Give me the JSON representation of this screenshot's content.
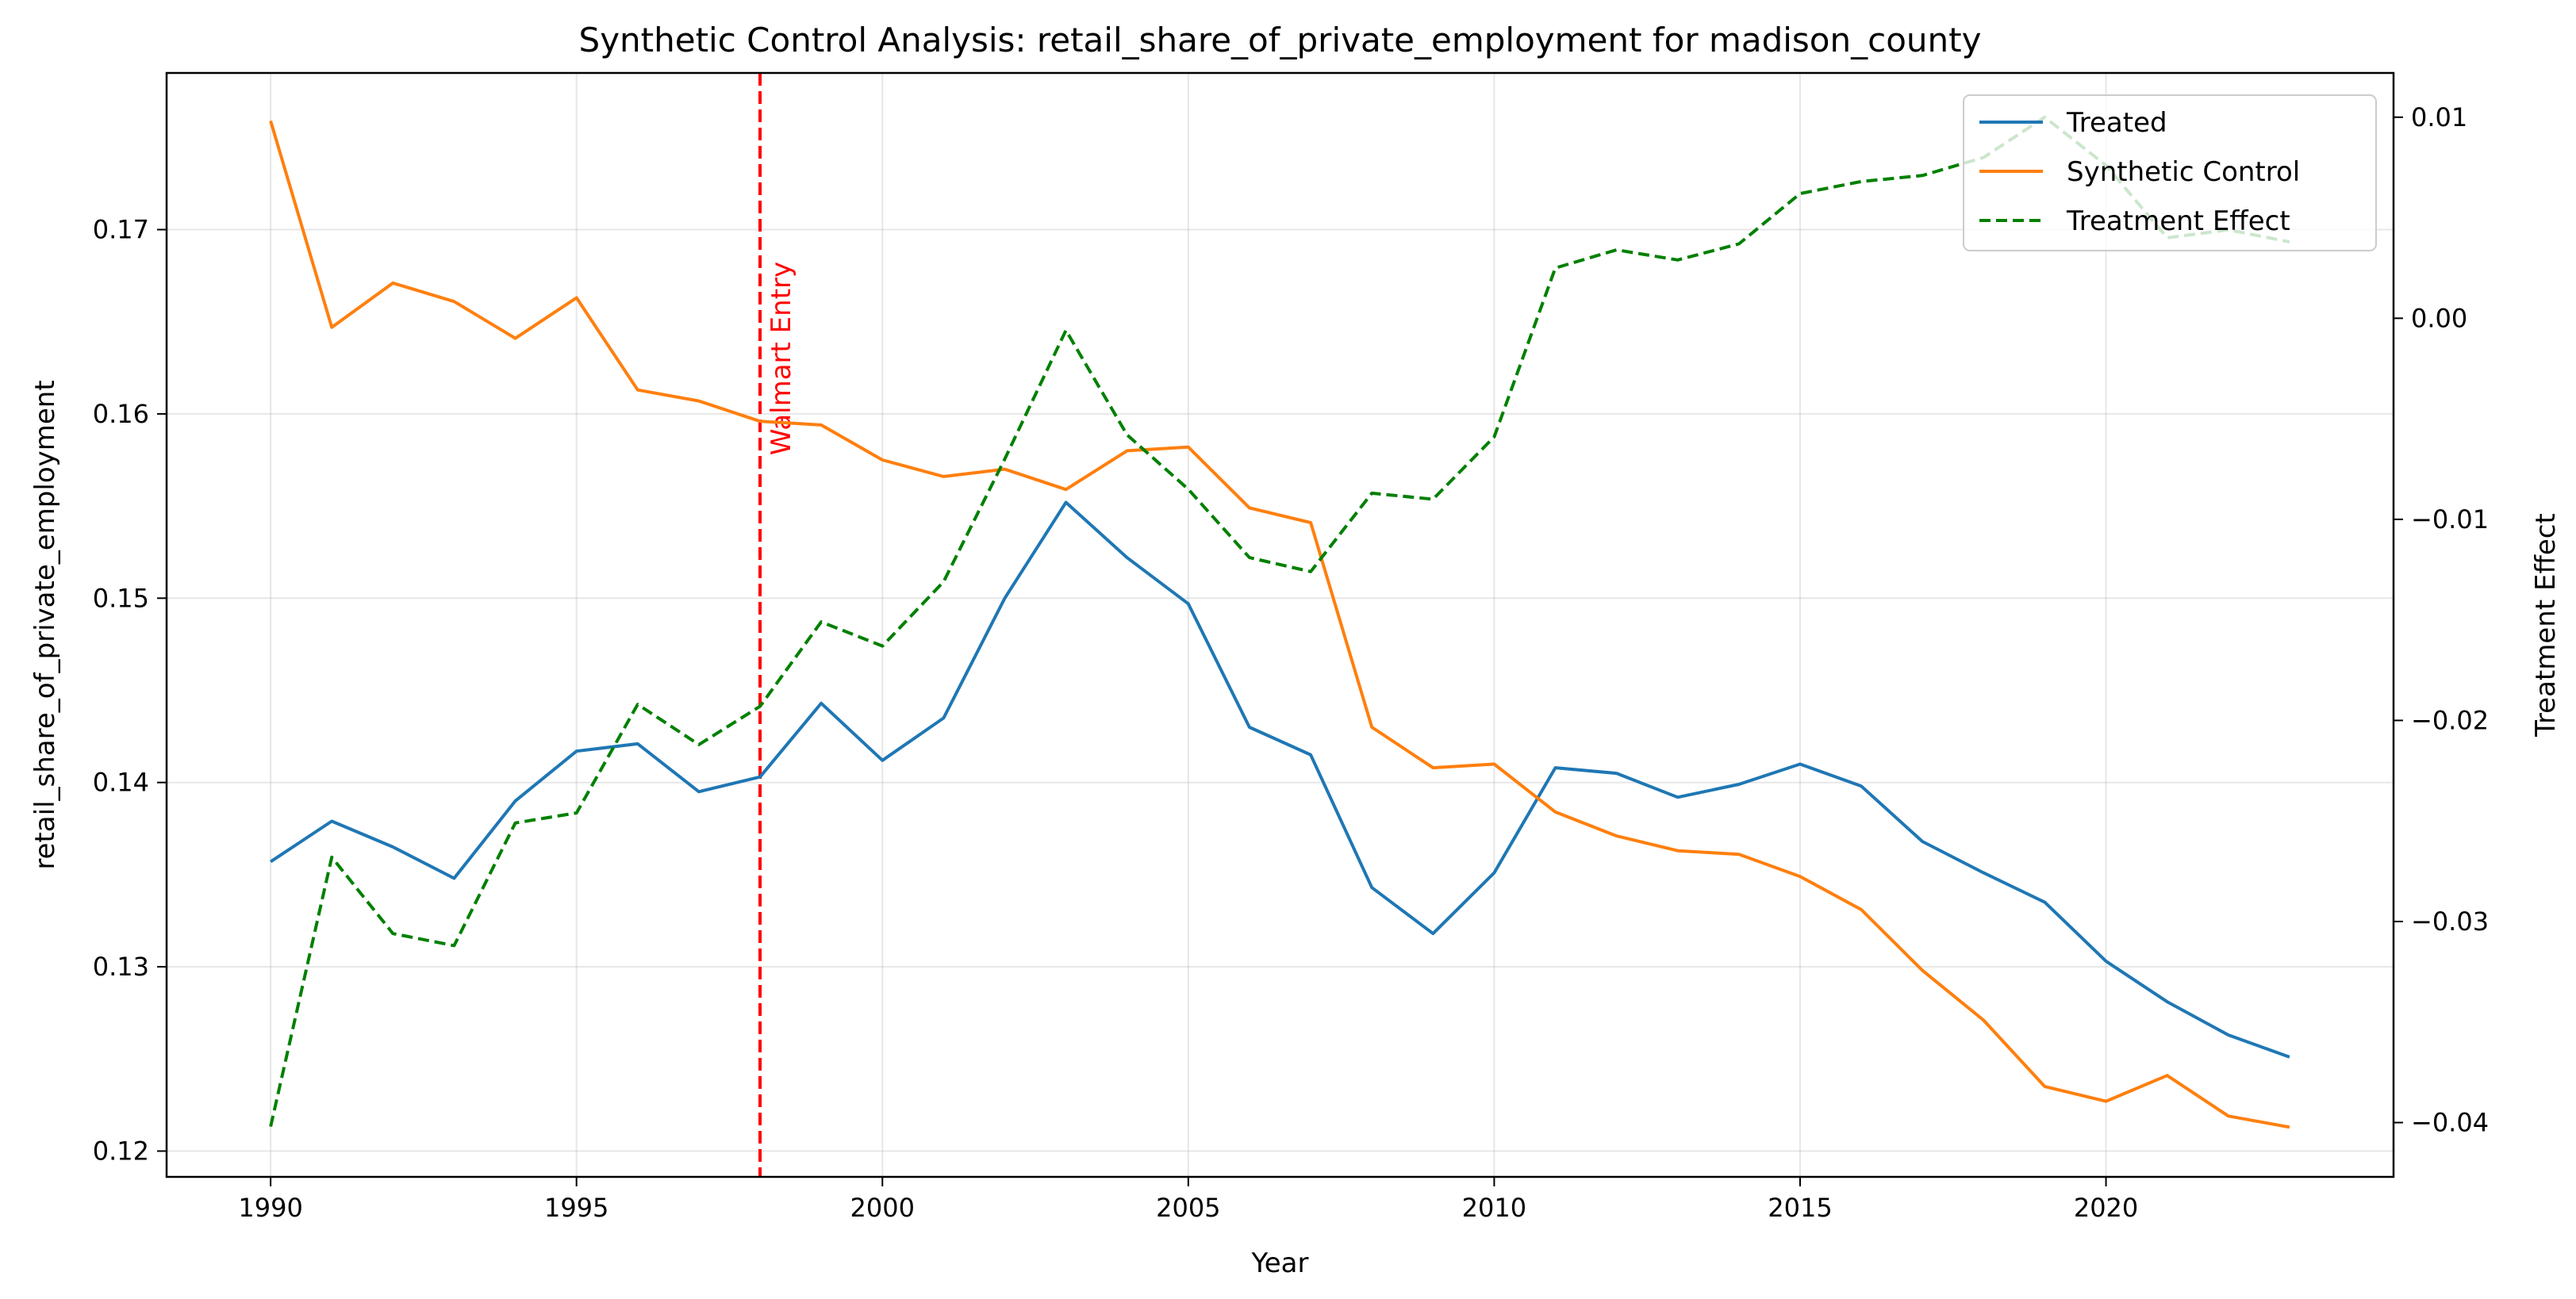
{
  "chart_data": {
    "type": "line",
    "title": "Synthetic Control Analysis: retail_share_of_private_employment for madison_county",
    "xlabel": "Year",
    "ylabel": "retail_share_of_private_employment",
    "y2label": "Treatment Effect",
    "xlim": [
      1988.3,
      2024.7
    ],
    "ylim": [
      0.1186,
      0.1785
    ],
    "y2lim": [
      -0.0427,
      0.0122
    ],
    "x_ticks": [
      1990,
      1995,
      2000,
      2005,
      2010,
      2015,
      2020
    ],
    "y_ticks": [
      0.12,
      0.13,
      0.14,
      0.15,
      0.16,
      0.17
    ],
    "y2_ticks": [
      -0.04,
      -0.03,
      -0.02,
      -0.01,
      0.0,
      0.01
    ],
    "grid": true,
    "legend_position": "top-right",
    "x": [
      1990,
      1991,
      1992,
      1993,
      1994,
      1995,
      1996,
      1997,
      1998,
      1999,
      2000,
      2001,
      2002,
      2003,
      2004,
      2005,
      2006,
      2007,
      2008,
      2009,
      2010,
      2011,
      2012,
      2013,
      2014,
      2015,
      2016,
      2017,
      2018,
      2019,
      2020,
      2021,
      2022,
      2023
    ],
    "series": [
      {
        "name": "Treated",
        "axis": "left",
        "color": "#1f77b4",
        "style": "solid",
        "values": [
          0.1357,
          0.1379,
          0.1365,
          0.1348,
          0.139,
          0.1417,
          0.1421,
          0.1395,
          0.1403,
          0.1443,
          0.1412,
          0.1435,
          0.15,
          0.1552,
          0.1522,
          0.1497,
          0.143,
          0.1415,
          0.1343,
          0.1318,
          0.1351,
          0.1408,
          0.1405,
          0.1392,
          0.1399,
          0.141,
          0.1398,
          0.1368,
          0.1351,
          0.1335,
          0.1303,
          0.1281,
          0.1263,
          0.1251
        ]
      },
      {
        "name": "Synthetic Control",
        "axis": "left",
        "color": "#ff7f0e",
        "style": "solid",
        "values": [
          0.1759,
          0.1647,
          0.1671,
          0.1661,
          0.1641,
          0.1663,
          0.1613,
          0.1607,
          0.1596,
          0.1594,
          0.1575,
          0.1566,
          0.157,
          0.1559,
          0.158,
          0.1582,
          0.1549,
          0.1541,
          0.143,
          0.1408,
          0.141,
          0.1384,
          0.1371,
          0.1363,
          0.1361,
          0.1349,
          0.1331,
          0.1298,
          0.1271,
          0.1235,
          0.1227,
          0.1241,
          0.1219,
          0.1213
        ]
      },
      {
        "name": "Treatment Effect",
        "axis": "right",
        "color": "#008000",
        "style": "dashed",
        "values": [
          -0.0402,
          -0.0268,
          -0.0306,
          -0.0312,
          -0.0251,
          -0.0246,
          -0.0192,
          -0.0212,
          -0.0193,
          -0.0151,
          -0.0163,
          -0.0131,
          -0.007,
          -0.0006,
          -0.0058,
          -0.0085,
          -0.0119,
          -0.0126,
          -0.0087,
          -0.009,
          -0.0059,
          0.0025,
          0.0034,
          0.0029,
          0.0037,
          0.0062,
          0.0068,
          0.0071,
          0.008,
          0.01,
          0.0076,
          0.004,
          0.0044,
          0.0038
        ]
      }
    ],
    "annotations": [
      {
        "type": "vline",
        "x": 1998,
        "label": "Walmart Entry",
        "color": "#ff0000",
        "style": "dashed"
      }
    ]
  }
}
